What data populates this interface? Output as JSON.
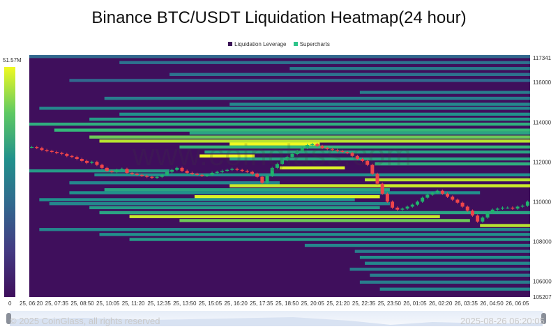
{
  "title": "Binance BTC/USDT Liquidation Heatmap(24 hour)",
  "legend": [
    {
      "label": "Liquidation Leverage",
      "color": "#3b1457"
    },
    {
      "label": "Supercharts",
      "color": "#2ec48a"
    }
  ],
  "scale_bar": {
    "max_label": "51.57M",
    "min_label": "0"
  },
  "watermark": "www.coinglass.com",
  "footer": {
    "copyright": "© 2025 CoinGlass, all rights reserved",
    "timestamp": "2025-08-26 06:20:05"
  },
  "chart_data": {
    "type": "heatmap",
    "title": "Binance BTC/USDT Liquidation Heatmap(24 hour)",
    "x_tick_labels": [
      "25, 06:20",
      "25, 07:35",
      "25, 08:50",
      "25, 10:05",
      "25, 11:20",
      "25, 12:35",
      "25, 13:50",
      "25, 15:05",
      "25, 16:20",
      "25, 17:35",
      "25, 18:50",
      "25, 20:05",
      "25, 21:20",
      "25, 22:35",
      "25, 23:50",
      "26, 01:05",
      "26, 02:20",
      "26, 03:35",
      "26, 04:50",
      "26, 06:05"
    ],
    "y_tick_labels": [
      "117341",
      "116000",
      "114000",
      "112000",
      "110000",
      "108000",
      "106000",
      "105207"
    ],
    "ylim": [
      105207,
      117341
    ],
    "colorscale": {
      "min": 0,
      "max": 51.57,
      "unit": "M",
      "colors": [
        "#3f0f5c",
        "#31688e",
        "#21918c",
        "#35b779",
        "#a5db36",
        "#f0f921"
      ]
    },
    "price_candles_close": [
      112750,
      112700,
      112600,
      112550,
      112500,
      112450,
      112400,
      112300,
      112250,
      112150,
      112050,
      111950,
      112000,
      111850,
      111700,
      111550,
      111500,
      111600,
      111650,
      111450,
      111400,
      111350,
      111300,
      111250,
      111200,
      111250,
      111350,
      111500,
      111600,
      111700,
      111550,
      111450,
      111400,
      111350,
      111300,
      111350,
      111450,
      111500,
      111550,
      111600,
      111650,
      111600,
      111550,
      111500,
      111400,
      111250,
      110950,
      111300,
      111700,
      111900,
      112100,
      112250,
      112400,
      112550,
      112700,
      112850,
      112900,
      112800,
      112700,
      112650,
      112600,
      112550,
      112500,
      112450,
      112300,
      112150,
      112050,
      111850,
      111400,
      110900,
      110400,
      110000,
      109700,
      109600,
      109650,
      109750,
      109850,
      110000,
      110200,
      110350,
      110450,
      110550,
      110400,
      110250,
      110100,
      109950,
      109750,
      109550,
      109300,
      109000,
      109200,
      109450,
      109600,
      109650,
      109700,
      109700,
      109650,
      109750,
      109800,
      110000
    ],
    "liquidation_bands": [
      {
        "price": 117300,
        "start": 0,
        "end": 1,
        "level": 0.2
      },
      {
        "price": 117000,
        "start": 0.18,
        "end": 1,
        "level": 0.25
      },
      {
        "price": 116700,
        "start": 0.52,
        "end": 1,
        "level": 0.3
      },
      {
        "price": 116400,
        "start": 0.28,
        "end": 1,
        "level": 0.25
      },
      {
        "price": 116100,
        "start": 0.08,
        "end": 1,
        "level": 0.2
      },
      {
        "price": 115500,
        "start": 0.66,
        "end": 1,
        "level": 0.3
      },
      {
        "price": 115200,
        "start": 0.15,
        "end": 1,
        "level": 0.3
      },
      {
        "price": 114900,
        "start": 0.4,
        "end": 1,
        "level": 0.35
      },
      {
        "price": 114700,
        "start": 0.02,
        "end": 1,
        "level": 0.35
      },
      {
        "price": 114400,
        "start": 0.18,
        "end": 1,
        "level": 0.4
      },
      {
        "price": 114150,
        "start": 0.12,
        "end": 1,
        "level": 0.45
      },
      {
        "price": 113900,
        "start": 0.0,
        "end": 1,
        "level": 0.55
      },
      {
        "price": 113600,
        "start": 0.05,
        "end": 1,
        "level": 0.6
      },
      {
        "price": 113450,
        "start": 0.32,
        "end": 1,
        "level": 0.5
      },
      {
        "price": 113250,
        "start": 0.12,
        "end": 1,
        "level": 0.7
      },
      {
        "price": 113050,
        "start": 0.14,
        "end": 1,
        "level": 0.85
      },
      {
        "price": 112900,
        "start": 0.4,
        "end": 0.58,
        "level": 1.0
      },
      {
        "price": 112750,
        "start": 0.3,
        "end": 1,
        "level": 0.6
      },
      {
        "price": 112500,
        "start": 0.35,
        "end": 1,
        "level": 0.5
      },
      {
        "price": 112300,
        "start": 0.34,
        "end": 0.45,
        "level": 1.0
      },
      {
        "price": 112150,
        "start": 0.4,
        "end": 1,
        "level": 0.5
      },
      {
        "price": 111900,
        "start": 0.69,
        "end": 1,
        "level": 0.55
      },
      {
        "price": 111700,
        "start": 0.5,
        "end": 0.63,
        "level": 0.95
      },
      {
        "price": 111550,
        "start": 0.0,
        "end": 0.28,
        "level": 0.45
      },
      {
        "price": 111350,
        "start": 0.13,
        "end": 1,
        "level": 0.4
      },
      {
        "price": 111100,
        "start": 0.67,
        "end": 1,
        "level": 0.85
      },
      {
        "price": 110950,
        "start": 0.08,
        "end": 0.5,
        "level": 0.35
      },
      {
        "price": 110800,
        "start": 0.4,
        "end": 1,
        "level": 0.9
      },
      {
        "price": 110600,
        "start": 0.15,
        "end": 0.72,
        "level": 0.5
      },
      {
        "price": 110450,
        "start": 0.08,
        "end": 0.9,
        "level": 0.4
      },
      {
        "price": 110250,
        "start": 0.33,
        "end": 0.7,
        "level": 0.95
      },
      {
        "price": 110100,
        "start": 0.02,
        "end": 0.65,
        "level": 0.4
      },
      {
        "price": 109900,
        "start": 0.04,
        "end": 0.72,
        "level": 0.35
      },
      {
        "price": 109700,
        "start": 0.12,
        "end": 0.7,
        "level": 0.45
      },
      {
        "price": 109450,
        "start": 0.14,
        "end": 1,
        "level": 0.5
      },
      {
        "price": 109250,
        "start": 0.2,
        "end": 0.82,
        "level": 0.9
      },
      {
        "price": 109050,
        "start": 0.3,
        "end": 0.88,
        "level": 0.7
      },
      {
        "price": 108800,
        "start": 0.9,
        "end": 1,
        "level": 0.85
      },
      {
        "price": 108600,
        "start": 0.02,
        "end": 1,
        "level": 0.35
      },
      {
        "price": 108350,
        "start": 0.14,
        "end": 1,
        "level": 0.4
      },
      {
        "price": 108100,
        "start": 0.2,
        "end": 1,
        "level": 0.45
      },
      {
        "price": 107800,
        "start": 0.55,
        "end": 1,
        "level": 0.35
      },
      {
        "price": 107500,
        "start": 0.65,
        "end": 1,
        "level": 0.3
      },
      {
        "price": 107200,
        "start": 0.66,
        "end": 1,
        "level": 0.4
      },
      {
        "price": 106900,
        "start": 0.67,
        "end": 1,
        "level": 0.35
      },
      {
        "price": 106600,
        "start": 0.64,
        "end": 1,
        "level": 0.3
      },
      {
        "price": 106300,
        "start": 0.68,
        "end": 1,
        "level": 0.3
      },
      {
        "price": 105950,
        "start": 0.66,
        "end": 1,
        "level": 0.3
      },
      {
        "price": 105600,
        "start": 0.7,
        "end": 1,
        "level": 0.35
      }
    ]
  }
}
